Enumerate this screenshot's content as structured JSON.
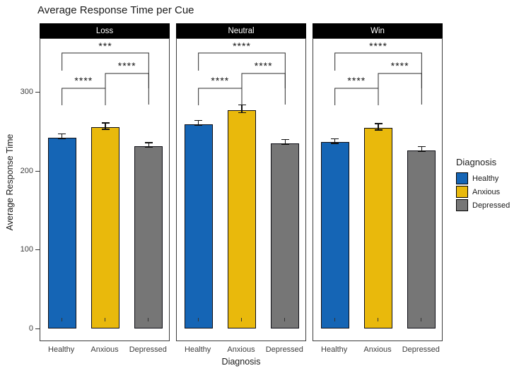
{
  "title": "Average Response Time per Cue",
  "axes": {
    "y_title": "Average Response Time",
    "x_title": "Diagnosis",
    "y_ticks": [
      "0",
      "100",
      "200",
      "300"
    ]
  },
  "legend": {
    "title": "Diagnosis",
    "items": [
      {
        "label": "Healthy",
        "color": "#1565B5"
      },
      {
        "label": "Anxious",
        "color": "#E9B90C"
      },
      {
        "label": "Depressed",
        "color": "#767676"
      }
    ]
  },
  "colors": {
    "healthy": "#1565B5",
    "anxious": "#E9B90C",
    "depressed": "#767676",
    "strip_bg": "#000000",
    "strip_text": "#ffffff",
    "bar_outline": "#0d0d14"
  },
  "chart_data": {
    "type": "bar",
    "facet_variable": "Cue",
    "categories": [
      "Healthy",
      "Anxious",
      "Depressed"
    ],
    "title": "Average Response Time per Cue",
    "xlabel": "Diagnosis",
    "ylabel": "Average Response Time",
    "ylim": [
      0,
      368
    ],
    "y_tick_values": [
      0,
      100,
      200,
      300
    ],
    "grid": false,
    "legend_position": "right",
    "error_bars": true,
    "facets": [
      {
        "label": "Loss",
        "values": [
          242,
          255,
          231
        ],
        "errors": [
          3,
          4,
          3
        ],
        "significance": [
          {
            "pair": "Healthy-Anxious",
            "stars": "****"
          },
          {
            "pair": "Anxious-Depressed",
            "stars": "****"
          },
          {
            "pair": "Healthy-Depressed",
            "stars": "***"
          }
        ]
      },
      {
        "label": "Neutral",
        "values": [
          259,
          277,
          235
        ],
        "errors": [
          3,
          5,
          3
        ],
        "significance": [
          {
            "pair": "Healthy-Anxious",
            "stars": "****"
          },
          {
            "pair": "Anxious-Depressed",
            "stars": "****"
          },
          {
            "pair": "Healthy-Depressed",
            "stars": "****"
          }
        ]
      },
      {
        "label": "Win",
        "values": [
          236,
          254,
          226
        ],
        "errors": [
          3,
          4,
          3
        ],
        "significance": [
          {
            "pair": "Healthy-Anxious",
            "stars": "****"
          },
          {
            "pair": "Anxious-Depressed",
            "stars": "****"
          },
          {
            "pair": "Healthy-Depressed",
            "stars": "****"
          }
        ]
      }
    ]
  }
}
